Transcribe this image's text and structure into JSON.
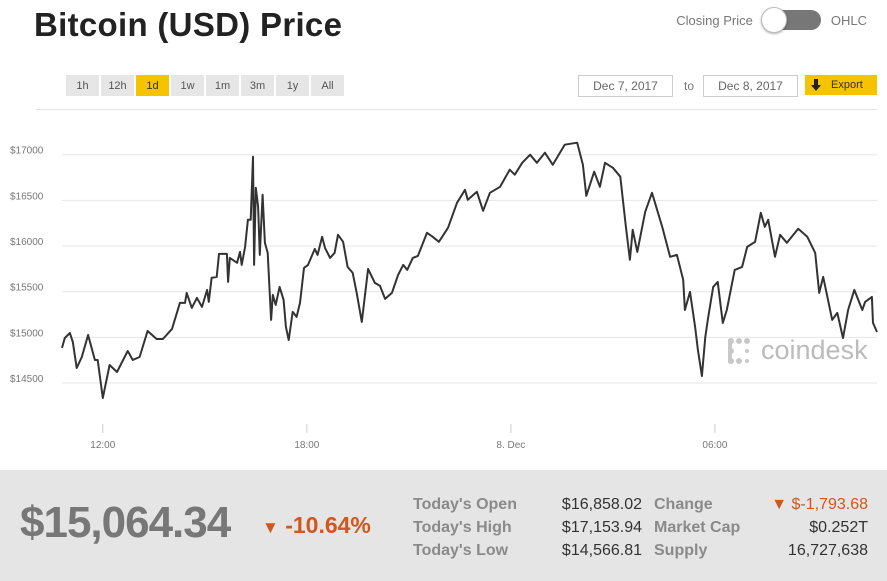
{
  "header": {
    "title": "Bitcoin (USD) Price",
    "toggle_left": "Closing Price",
    "toggle_right": "OHLC"
  },
  "ranges": [
    {
      "label": "1h"
    },
    {
      "label": "12h"
    },
    {
      "label": "1d",
      "active": true
    },
    {
      "label": "1w"
    },
    {
      "label": "1m"
    },
    {
      "label": "3m"
    },
    {
      "label": "1y"
    },
    {
      "label": "All"
    }
  ],
  "dates": {
    "from": "Dec 7, 2017",
    "to_label": "to",
    "to": "Dec 8, 2017"
  },
  "export_label": "Export",
  "watermark": "coindesk",
  "colors": {
    "accent": "#f7c200",
    "negative": "#d0581e",
    "line": "#333333"
  },
  "chart_data": {
    "type": "line",
    "title": "",
    "xlabel": "",
    "ylabel": "",
    "grid": true,
    "xlim": [
      "2017-12-07T10:48",
      "2017-12-08T10:46"
    ],
    "ylim": [
      14040,
      17490
    ],
    "yticks": [
      {
        "value": 14500,
        "label": "$14500"
      },
      {
        "value": 15000,
        "label": "$15000"
      },
      {
        "value": 15500,
        "label": "$15500"
      },
      {
        "value": 16000,
        "label": "$16000"
      },
      {
        "value": 16500,
        "label": "$16500"
      },
      {
        "value": 17000,
        "label": "$17000"
      }
    ],
    "xticks": [
      {
        "value": "2017-12-07T12:00",
        "label": "12:00"
      },
      {
        "value": "2017-12-07T18:00",
        "label": "18:00"
      },
      {
        "value": "2017-12-08T00:00",
        "label": "8. Dec"
      },
      {
        "value": "2017-12-08T06:00",
        "label": "06:00"
      }
    ],
    "points": [
      [
        "2017-12-07T10:48",
        14884
      ],
      [
        "2017-12-07T10:53",
        14993
      ],
      [
        "2017-12-07T11:02",
        15048
      ],
      [
        "2017-12-07T11:07",
        14950
      ],
      [
        "2017-12-07T11:14",
        14664
      ],
      [
        "2017-12-07T11:23",
        14785
      ],
      [
        "2017-12-07T11:34",
        15026
      ],
      [
        "2017-12-07T11:46",
        14752
      ],
      [
        "2017-12-07T11:51",
        14752
      ],
      [
        "2017-12-07T12:00",
        14336
      ],
      [
        "2017-12-07T12:12",
        14697
      ],
      [
        "2017-12-07T12:25",
        14621
      ],
      [
        "2017-12-07T12:44",
        14851
      ],
      [
        "2017-12-07T12:53",
        14752
      ],
      [
        "2017-12-07T13:05",
        14785
      ],
      [
        "2017-12-07T13:19",
        15070
      ],
      [
        "2017-12-07T13:35",
        14982
      ],
      [
        "2017-12-07T13:46",
        14982
      ],
      [
        "2017-12-07T14:02",
        15092
      ],
      [
        "2017-12-07T14:16",
        15377
      ],
      [
        "2017-12-07T14:25",
        15377
      ],
      [
        "2017-12-07T14:28",
        15487
      ],
      [
        "2017-12-07T14:37",
        15322
      ],
      [
        "2017-12-07T14:46",
        15432
      ],
      [
        "2017-12-07T14:55",
        15333
      ],
      [
        "2017-12-07T15:04",
        15520
      ],
      [
        "2017-12-07T15:07",
        15388
      ],
      [
        "2017-12-07T15:12",
        15651
      ],
      [
        "2017-12-07T15:21",
        15662
      ],
      [
        "2017-12-07T15:25",
        15914
      ],
      [
        "2017-12-07T15:39",
        15914
      ],
      [
        "2017-12-07T15:41",
        15607
      ],
      [
        "2017-12-07T15:44",
        15870
      ],
      [
        "2017-12-07T15:57",
        15816
      ],
      [
        "2017-12-07T16:02",
        15936
      ],
      [
        "2017-12-07T16:05",
        15794
      ],
      [
        "2017-12-07T16:11",
        15991
      ],
      [
        "2017-12-07T16:16",
        16287
      ],
      [
        "2017-12-07T16:21",
        16287
      ],
      [
        "2017-12-07T16:25",
        16978
      ],
      [
        "2017-12-07T16:27",
        15794
      ],
      [
        "2017-12-07T16:30",
        16638
      ],
      [
        "2017-12-07T16:34",
        16430
      ],
      [
        "2017-12-07T16:37",
        15903
      ],
      [
        "2017-12-07T16:42",
        16561
      ],
      [
        "2017-12-07T16:46",
        16035
      ],
      [
        "2017-12-07T16:51",
        15925
      ],
      [
        "2017-12-07T16:57",
        15191
      ],
      [
        "2017-12-07T17:00",
        15465
      ],
      [
        "2017-12-07T17:05",
        15355
      ],
      [
        "2017-12-07T17:12",
        15553
      ],
      [
        "2017-12-07T17:19",
        15410
      ],
      [
        "2017-12-07T17:23",
        15114
      ],
      [
        "2017-12-07T17:28",
        14971
      ],
      [
        "2017-12-07T17:35",
        15279
      ],
      [
        "2017-12-07T17:42",
        15224
      ],
      [
        "2017-12-07T17:48",
        15377
      ],
      [
        "2017-12-07T17:55",
        15761
      ],
      [
        "2017-12-07T18:02",
        15794
      ],
      [
        "2017-12-07T18:14",
        15969
      ],
      [
        "2017-12-07T18:19",
        15903
      ],
      [
        "2017-12-07T18:27",
        16101
      ],
      [
        "2017-12-07T18:32",
        15980
      ],
      [
        "2017-12-07T18:41",
        15870
      ],
      [
        "2017-12-07T18:49",
        15925
      ],
      [
        "2017-12-07T18:55",
        16123
      ],
      [
        "2017-12-07T19:04",
        16046
      ],
      [
        "2017-12-07T19:12",
        15772
      ],
      [
        "2017-12-07T19:21",
        15706
      ],
      [
        "2017-12-07T19:28",
        15487
      ],
      [
        "2017-12-07T19:37",
        15169
      ],
      [
        "2017-12-07T19:48",
        15750
      ],
      [
        "2017-12-07T20:00",
        15596
      ],
      [
        "2017-12-07T20:09",
        15564
      ],
      [
        "2017-12-07T20:18",
        15421
      ],
      [
        "2017-12-07T20:30",
        15487
      ],
      [
        "2017-12-07T20:41",
        15684
      ],
      [
        "2017-12-07T20:50",
        15794
      ],
      [
        "2017-12-07T20:57",
        15739
      ],
      [
        "2017-12-07T21:07",
        15870
      ],
      [
        "2017-12-07T21:16",
        15892
      ],
      [
        "2017-12-07T21:32",
        16145
      ],
      [
        "2017-12-07T21:42",
        16101
      ],
      [
        "2017-12-07T21:53",
        16046
      ],
      [
        "2017-12-07T22:09",
        16200
      ],
      [
        "2017-12-07T22:25",
        16474
      ],
      [
        "2017-12-07T22:39",
        16616
      ],
      [
        "2017-12-07T22:44",
        16507
      ],
      [
        "2017-12-07T23:00",
        16594
      ],
      [
        "2017-12-07T23:11",
        16386
      ],
      [
        "2017-12-07T23:23",
        16583
      ],
      [
        "2017-12-07T23:41",
        16649
      ],
      [
        "2017-12-07T23:58",
        16836
      ],
      [
        "2017-12-08T00:07",
        16781
      ],
      [
        "2017-12-08T00:20",
        16912
      ],
      [
        "2017-12-08T00:34",
        17000
      ],
      [
        "2017-12-08T00:46",
        16912
      ],
      [
        "2017-12-08T01:00",
        17022
      ],
      [
        "2017-12-08T01:14",
        16890
      ],
      [
        "2017-12-08T01:35",
        17110
      ],
      [
        "2017-12-08T01:57",
        17132
      ],
      [
        "2017-12-08T02:07",
        16890
      ],
      [
        "2017-12-08T02:13",
        16550
      ],
      [
        "2017-12-08T02:27",
        16814
      ],
      [
        "2017-12-08T02:37",
        16649
      ],
      [
        "2017-12-08T02:46",
        16912
      ],
      [
        "2017-12-08T03:00",
        16857
      ],
      [
        "2017-12-08T03:13",
        16759
      ],
      [
        "2017-12-08T03:23",
        16211
      ],
      [
        "2017-12-08T03:30",
        15849
      ],
      [
        "2017-12-08T03:35",
        16178
      ],
      [
        "2017-12-08T03:43",
        15936
      ],
      [
        "2017-12-08T03:57",
        16375
      ],
      [
        "2017-12-08T04:09",
        16583
      ],
      [
        "2017-12-08T04:27",
        16211
      ],
      [
        "2017-12-08T04:41",
        15882
      ],
      [
        "2017-12-08T04:53",
        15903
      ],
      [
        "2017-12-08T05:04",
        15629
      ],
      [
        "2017-12-08T05:07",
        15300
      ],
      [
        "2017-12-08T05:16",
        15498
      ],
      [
        "2017-12-08T05:25",
        15114
      ],
      [
        "2017-12-08T05:30",
        14862
      ],
      [
        "2017-12-08T05:37",
        14577
      ],
      [
        "2017-12-08T05:43",
        15004
      ],
      [
        "2017-12-08T05:48",
        15213
      ],
      [
        "2017-12-08T05:57",
        15553
      ],
      [
        "2017-12-08T06:05",
        15607
      ],
      [
        "2017-12-08T06:14",
        15158
      ],
      [
        "2017-12-08T06:21",
        15300
      ],
      [
        "2017-12-08T06:35",
        15739
      ],
      [
        "2017-12-08T06:48",
        15772
      ],
      [
        "2017-12-08T06:57",
        15991
      ],
      [
        "2017-12-08T07:11",
        16046
      ],
      [
        "2017-12-08T07:21",
        16364
      ],
      [
        "2017-12-08T07:28",
        16211
      ],
      [
        "2017-12-08T07:34",
        16287
      ],
      [
        "2017-12-08T07:46",
        15882
      ],
      [
        "2017-12-08T07:55",
        16123
      ],
      [
        "2017-12-08T08:07",
        16035
      ],
      [
        "2017-12-08T08:27",
        16189
      ],
      [
        "2017-12-08T08:43",
        16101
      ],
      [
        "2017-12-08T08:57",
        15925
      ],
      [
        "2017-12-08T09:04",
        15487
      ],
      [
        "2017-12-08T09:11",
        15662
      ],
      [
        "2017-12-08T09:27",
        15191
      ],
      [
        "2017-12-08T09:36",
        15268
      ],
      [
        "2017-12-08T09:46",
        14993
      ],
      [
        "2017-12-08T09:55",
        15300
      ],
      [
        "2017-12-08T10:06",
        15520
      ],
      [
        "2017-12-08T10:20",
        15300
      ],
      [
        "2017-12-08T10:25",
        15388
      ],
      [
        "2017-12-08T10:37",
        15443
      ],
      [
        "2017-12-08T10:39",
        15158
      ],
      [
        "2017-12-08T10:46",
        15059
      ]
    ]
  },
  "footer": {
    "price": "$15,064.34",
    "change_pct": "-10.64%",
    "arrow": "▼",
    "stats": [
      {
        "label": "Today's Open",
        "value": "$16,858.02"
      },
      {
        "label": "Today's High",
        "value": "$17,153.94"
      },
      {
        "label": "Today's Low",
        "value": "$14,566.81"
      },
      {
        "label": "Change",
        "value": "▼ $-1,793.68"
      },
      {
        "label": "Market Cap",
        "value": "$0.252T"
      },
      {
        "label": "Supply",
        "value": "16,727,638"
      }
    ]
  }
}
